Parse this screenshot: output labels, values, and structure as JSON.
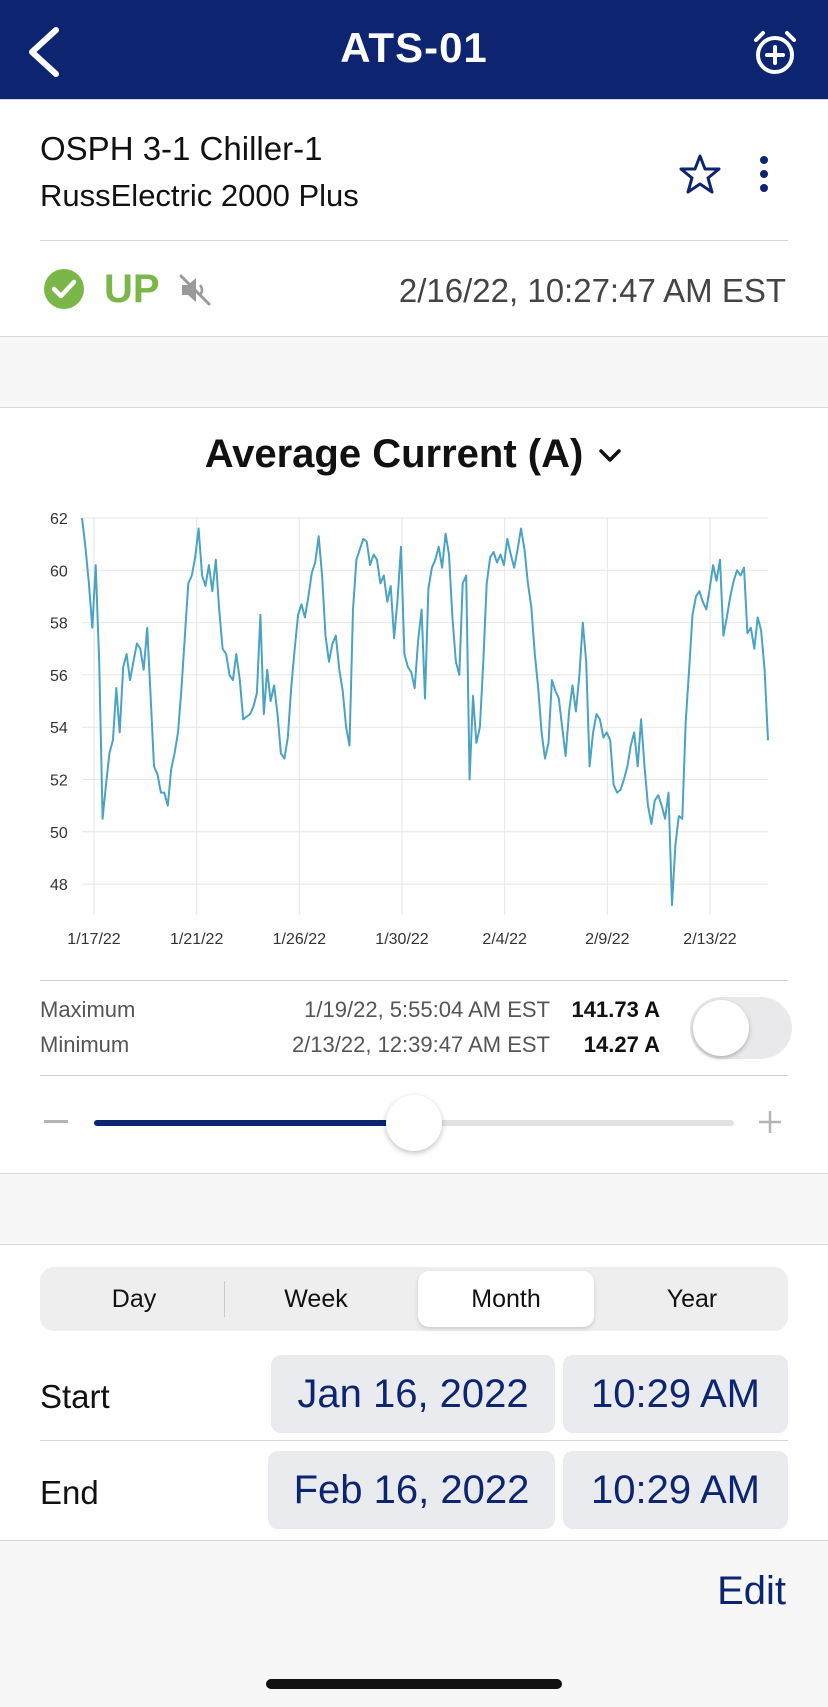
{
  "nav": {
    "title": "ATS-01"
  },
  "device": {
    "name": "OSPH 3-1 Chiller-1",
    "model": "RussElectric 2000 Plus"
  },
  "status": {
    "state": "UP",
    "timestamp": "2/16/22, 10:27:47 AM EST",
    "color": "#7ab648"
  },
  "chart": {
    "title": "Average Current (A)"
  },
  "chart_data": {
    "type": "line",
    "title": "Average Current (A)",
    "xlabel": "",
    "ylabel": "",
    "ylim": [
      47.2,
      62
    ],
    "yticks": [
      48,
      50,
      52,
      54,
      56,
      58,
      60,
      62
    ],
    "xticks": [
      "1/17/22",
      "1/21/22",
      "1/26/22",
      "1/30/22",
      "2/4/22",
      "2/9/22",
      "2/13/22"
    ],
    "grid": true,
    "color": "#4ba3c3",
    "series": [
      {
        "values": [
          62,
          60.9,
          59.5,
          57.8,
          60.2,
          56.5,
          50.5,
          51.8,
          53,
          53.5,
          55.5,
          53.8,
          56.3,
          56.8,
          55.8,
          56.5,
          57.2,
          57,
          56.2,
          57.8,
          55.2,
          52.5,
          52.2,
          51.5,
          51.5,
          51,
          52.4,
          53,
          53.8,
          55.5,
          57.5,
          59.5,
          59.8,
          60.5,
          61.6,
          59.8,
          59.4,
          60.2,
          59.2,
          60.4,
          58.5,
          57,
          56.8,
          56,
          55.8,
          56.8,
          55.8,
          54.3,
          54.4,
          54.5,
          54.8,
          55.3,
          58.3,
          54.5,
          56.2,
          55,
          55.6,
          54.5,
          53,
          52.8,
          53.6,
          55.5,
          57,
          58.3,
          58.7,
          58.2,
          59,
          59.9,
          60.3,
          61.3,
          59.8,
          57.5,
          56.5,
          57.2,
          57.5,
          56.2,
          55.4,
          54,
          53.3,
          58.5,
          60.4,
          60.8,
          61.2,
          61.1,
          60.2,
          60.6,
          60.4,
          59.5,
          59.8,
          58.8,
          59.4,
          57.4,
          58.9,
          60.9,
          56.8,
          56.3,
          56.1,
          55.5,
          57.3,
          58.5,
          55.1,
          59.3,
          60.1,
          60.4,
          60.9,
          60.1,
          61.4,
          60.6,
          58.2,
          56.5,
          56,
          59.5,
          59.8,
          52,
          55.2,
          53.4,
          54,
          56.5,
          59.5,
          60.5,
          60.7,
          60.3,
          60.6,
          60.2,
          61.2,
          60.6,
          60.1,
          60.8,
          61.6,
          60.8,
          59.5,
          58.6,
          56.8,
          55.5,
          53.8,
          52.8,
          53.4,
          55.8,
          55.4,
          55.1,
          54,
          52.9,
          54.6,
          55.6,
          54.6,
          56,
          58,
          56.5,
          52.5,
          53.8,
          54.5,
          54.3,
          53.6,
          53.8,
          53.5,
          51.8,
          51.5,
          51.6,
          52,
          52.5,
          53.3,
          53.8,
          52.5,
          54.3,
          52.5,
          51,
          50.3,
          51.2,
          51.4,
          51,
          50.5,
          51.5,
          47.2,
          49.5,
          50.6,
          50.5,
          54.2,
          56.2,
          58.3,
          59,
          59.2,
          58.8,
          58.5,
          59.3,
          60.2,
          59.6,
          60.4,
          57.5,
          58.2,
          59,
          59.6,
          60,
          59.8,
          60.1,
          57.6,
          57.8,
          57,
          58.2,
          57.7,
          56.2,
          53.5
        ]
      }
    ]
  },
  "stats": {
    "max_label": "Maximum",
    "max_time": "1/19/22, 5:55:04 AM EST",
    "max_value": "141.73 A",
    "min_label": "Minimum",
    "min_time": "2/13/22, 12:39:47 AM EST",
    "min_value": "14.27 A",
    "toggle_on": false
  },
  "zoom_slider": {
    "value": 0.5
  },
  "period_tabs": [
    {
      "label": "Day",
      "active": false
    },
    {
      "label": "Week",
      "active": false
    },
    {
      "label": "Month",
      "active": true
    },
    {
      "label": "Year",
      "active": false
    }
  ],
  "range": {
    "start_label": "Start",
    "start_date": "Jan 16, 2022",
    "start_time": "10:29 AM",
    "end_label": "End",
    "end_date": "Feb 16, 2022",
    "end_time": "10:29 AM"
  },
  "footer": {
    "edit_label": "Edit"
  },
  "colors": {
    "brand": "#0d2470",
    "status_up": "#7ab648",
    "chart_line": "#4ba3c3"
  }
}
